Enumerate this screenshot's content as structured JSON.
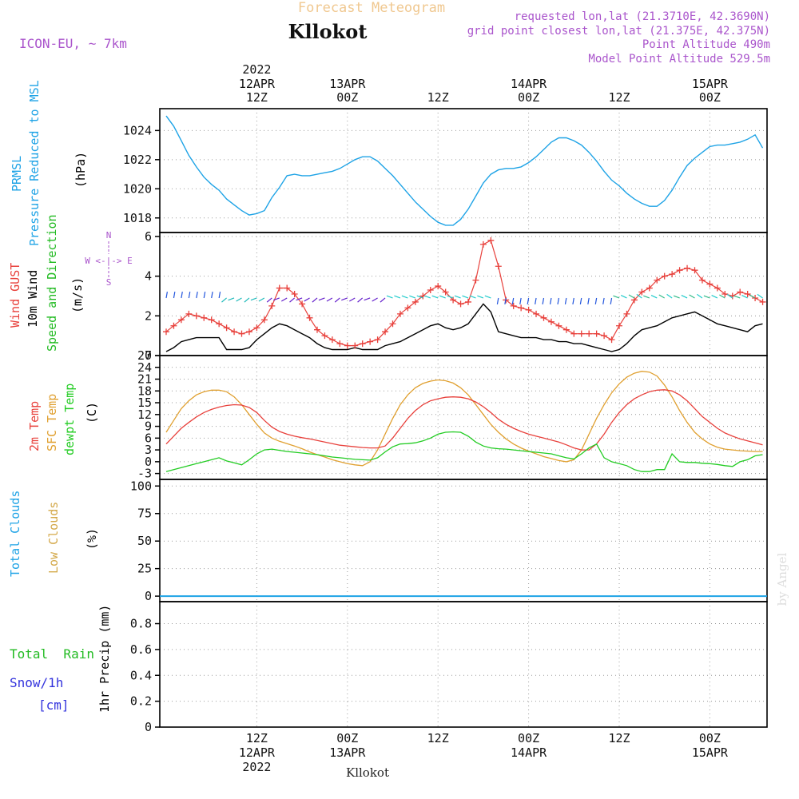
{
  "header": {
    "title": "Forecast Meteogram",
    "location": "Kllokot",
    "model": "ICON-EU, ~ 7km",
    "requested": "requested lon,lat (21.3710E, 42.3690N)",
    "grid_point": "grid point closest lon,lat (21.375E, 42.375N)",
    "point_altitude": "Point Altitude 490m",
    "model_altitude": "Model Point Altitude 529.5m"
  },
  "footer": {
    "location": "Kllokot",
    "credit": "by Angel"
  },
  "colors": {
    "pressure": "#1ea3e6",
    "gust": "#e8413c",
    "wind": "#000000",
    "wind_label_green": "#22bb22",
    "temp2m": "#e8413c",
    "sfc": "#e0a030",
    "dewpt": "#22cc22",
    "total_clouds": "#1ea3e6",
    "low_clouds": "#d4a94a",
    "rain": "#22bb22",
    "snow": "#3333dd",
    "purple": "#aa55cc",
    "title": "#f0c890"
  },
  "time_axis": {
    "top_labels": [
      {
        "t": 12,
        "line1": "2022",
        "line2": "12APR",
        "line3": "12Z"
      },
      {
        "t": 24,
        "line1": "",
        "line2": "13APR",
        "line3": "00Z"
      },
      {
        "t": 36,
        "line1": "",
        "line2": "",
        "line3": "12Z"
      },
      {
        "t": 48,
        "line1": "",
        "line2": "14APR",
        "line3": "00Z"
      },
      {
        "t": 60,
        "line1": "",
        "line2": "",
        "line3": "12Z"
      },
      {
        "t": 72,
        "line1": "",
        "line2": "15APR",
        "line3": "00Z"
      }
    ],
    "bottom_labels": [
      {
        "t": 12,
        "line1": "12Z",
        "line2": "12APR",
        "line3": "2022"
      },
      {
        "t": 24,
        "line1": "00Z",
        "line2": "13APR",
        "line3": ""
      },
      {
        "t": 36,
        "line1": "12Z",
        "line2": "",
        "line3": ""
      },
      {
        "t": 48,
        "line1": "00Z",
        "line2": "14APR",
        "line3": ""
      },
      {
        "t": 60,
        "line1": "12Z",
        "line2": "",
        "line3": ""
      },
      {
        "t": 72,
        "line1": "00Z",
        "line2": "15APR",
        "line3": ""
      }
    ]
  },
  "panels": {
    "pressure": {
      "label1": "PRMSL",
      "label2": "Pressure Reduced to MSL",
      "unit": "(hPa)"
    },
    "wind": {
      "gust": "Wind GUST",
      "wind10": "10m Wind",
      "speed_dir": "Speed and Direction",
      "unit": "(m/s)",
      "compass": "W <-|-> E",
      "compass_n": "N",
      "compass_s": "S"
    },
    "temp": {
      "t2m": "2m Temp",
      "sfc": "SFC Temp",
      "dew": "dewpt Temp",
      "unit": "(C)"
    },
    "clouds": {
      "total": "Total Clouds",
      "low": "Low Clouds",
      "unit": "(%)"
    },
    "precip": {
      "rain": "Total  Rain",
      "snow": "Snow/1h",
      "cm": "[cm]",
      "unit": "1hr Precip (mm)"
    }
  },
  "chart_data": [
    {
      "type": "line",
      "name": "pressure",
      "title": "PRMSL Pressure Reduced to MSL",
      "ylabel": "hPa",
      "t_start": 0,
      "t_step": 1,
      "xlim": [
        0,
        79
      ],
      "ylim": [
        1017,
        1025.5
      ],
      "yticks": [
        1018,
        1020,
        1022,
        1024
      ],
      "values": [
        1025.0,
        1024.3,
        1023.3,
        1022.3,
        1021.5,
        1020.8,
        1020.3,
        1019.9,
        1019.3,
        1018.9,
        1018.5,
        1018.2,
        1018.3,
        1018.5,
        1019.4,
        1020.1,
        1020.9,
        1021.0,
        1020.9,
        1020.9,
        1021.0,
        1021.1,
        1021.2,
        1021.4,
        1021.7,
        1022.0,
        1022.2,
        1022.2,
        1021.9,
        1021.4,
        1020.9,
        1020.3,
        1019.7,
        1019.1,
        1018.6,
        1018.1,
        1017.7,
        1017.5,
        1017.5,
        1017.9,
        1018.6,
        1019.5,
        1020.4,
        1021.0,
        1021.3,
        1021.4,
        1021.4,
        1021.5,
        1021.8,
        1022.2,
        1022.7,
        1023.2,
        1023.5,
        1023.5,
        1023.3,
        1023.0,
        1022.5,
        1021.9,
        1021.2,
        1020.6,
        1020.2,
        1019.7,
        1019.3,
        1019.0,
        1018.8,
        1018.8,
        1019.2,
        1019.9,
        1020.8,
        1021.6,
        1022.1,
        1022.5,
        1022.9,
        1023.0,
        1023.0,
        1023.1,
        1023.2,
        1023.4,
        1023.7,
        1022.8
      ]
    },
    {
      "type": "line",
      "name": "wind",
      "title": "Wind GUST / 10m Wind Speed and Direction",
      "ylabel": "m/s",
      "t_start": 0,
      "t_step": 1,
      "xlim": [
        0,
        79
      ],
      "ylim": [
        0,
        6.2
      ],
      "yticks": [
        0,
        2,
        4,
        6
      ],
      "series": [
        {
          "name": "Wind GUST",
          "values": [
            1.2,
            1.5,
            1.8,
            2.1,
            2.0,
            1.9,
            1.8,
            1.6,
            1.4,
            1.2,
            1.1,
            1.2,
            1.4,
            1.8,
            2.5,
            3.4,
            3.4,
            3.1,
            2.6,
            1.9,
            1.3,
            1.0,
            0.8,
            0.6,
            0.5,
            0.5,
            0.6,
            0.7,
            0.8,
            1.2,
            1.6,
            2.1,
            2.4,
            2.7,
            3.0,
            3.3,
            3.5,
            3.2,
            2.8,
            2.6,
            2.7,
            3.8,
            5.6,
            5.8,
            4.5,
            2.8,
            2.5,
            2.4,
            2.3,
            2.1,
            1.9,
            1.7,
            1.5,
            1.3,
            1.1,
            1.1,
            1.1,
            1.1,
            1.0,
            0.8,
            1.5,
            2.1,
            2.8,
            3.2,
            3.4,
            3.8,
            4.0,
            4.1,
            4.3,
            4.4,
            4.3,
            3.8,
            3.6,
            3.4,
            3.1,
            3.0,
            3.2,
            3.1,
            2.9,
            2.7
          ]
        },
        {
          "name": "10m Wind",
          "values": [
            0.2,
            0.4,
            0.7,
            0.8,
            0.9,
            0.9,
            0.9,
            0.9,
            0.3,
            0.3,
            0.3,
            0.4,
            0.8,
            1.1,
            1.4,
            1.6,
            1.5,
            1.3,
            1.1,
            0.9,
            0.6,
            0.4,
            0.3,
            0.3,
            0.3,
            0.4,
            0.3,
            0.3,
            0.3,
            0.5,
            0.6,
            0.7,
            0.9,
            1.1,
            1.3,
            1.5,
            1.6,
            1.4,
            1.3,
            1.4,
            1.6,
            2.1,
            2.6,
            2.2,
            1.2,
            1.1,
            1.0,
            0.9,
            0.9,
            0.9,
            0.8,
            0.8,
            0.7,
            0.7,
            0.6,
            0.6,
            0.5,
            0.4,
            0.3,
            0.2,
            0.3,
            0.6,
            1.0,
            1.3,
            1.4,
            1.5,
            1.7,
            1.9,
            2.0,
            2.1,
            2.2,
            2.0,
            1.8,
            1.6,
            1.5,
            1.4,
            1.3,
            1.2,
            1.5,
            1.6
          ]
        }
      ],
      "direction_colors": [
        "#2255dd",
        "#2255dd",
        "#6622cc",
        "#6622cc",
        "#6622cc",
        "#6622cc",
        "#00aaaa",
        "#33cccc",
        "#33bb88",
        "#22cccc"
      ]
    },
    {
      "type": "line",
      "name": "temperature",
      "title": "2m Temp / SFC Temp / dewpt Temp",
      "ylabel": "C",
      "t_start": 0,
      "t_step": 1,
      "xlim": [
        0,
        79
      ],
      "ylim": [
        -4.5,
        27
      ],
      "yticks": [
        -3,
        0,
        3,
        6,
        9,
        12,
        15,
        18,
        21,
        24,
        27
      ],
      "series": [
        {
          "name": "2m Temp",
          "values": [
            4.5,
            6.5,
            8.5,
            10.0,
            11.4,
            12.5,
            13.3,
            13.9,
            14.3,
            14.5,
            14.4,
            13.8,
            12.5,
            10.5,
            8.8,
            7.7,
            7.0,
            6.5,
            6.1,
            5.8,
            5.4,
            5.0,
            4.6,
            4.2,
            4.0,
            3.8,
            3.6,
            3.5,
            3.5,
            4.0,
            6.0,
            8.5,
            11.0,
            13.0,
            14.5,
            15.5,
            16.0,
            16.4,
            16.5,
            16.4,
            16.0,
            15.2,
            14.0,
            12.5,
            10.8,
            9.5,
            8.5,
            7.7,
            7.0,
            6.5,
            6.0,
            5.5,
            5.0,
            4.3,
            3.5,
            3.0,
            3.0,
            4.5,
            7.0,
            10.0,
            12.5,
            14.5,
            16.0,
            17.0,
            17.8,
            18.2,
            18.3,
            18.0,
            17.0,
            15.5,
            13.5,
            11.5,
            10.0,
            8.5,
            7.3,
            6.5,
            5.8,
            5.3,
            4.8,
            4.3
          ]
        },
        {
          "name": "SFC Temp",
          "values": [
            7.5,
            10.5,
            13.5,
            15.5,
            17.0,
            17.8,
            18.2,
            18.2,
            17.8,
            16.5,
            14.5,
            12.0,
            9.5,
            7.3,
            6.0,
            5.2,
            4.6,
            4.0,
            3.3,
            2.5,
            1.8,
            1.2,
            0.5,
            0.0,
            -0.5,
            -0.8,
            -1.0,
            0.0,
            3.0,
            7.0,
            11.0,
            14.5,
            17.0,
            18.8,
            19.9,
            20.5,
            20.8,
            20.6,
            20.0,
            18.8,
            17.0,
            14.5,
            12.0,
            9.5,
            7.5,
            5.8,
            4.5,
            3.5,
            2.7,
            2.0,
            1.3,
            0.8,
            0.3,
            0.0,
            0.5,
            3.0,
            7.0,
            11.0,
            14.5,
            17.5,
            19.8,
            21.5,
            22.5,
            23.0,
            22.8,
            21.8,
            19.5,
            16.5,
            13.0,
            10.0,
            7.5,
            5.8,
            4.5,
            3.7,
            3.2,
            3.0,
            2.8,
            2.7,
            2.6,
            2.6
          ]
        },
        {
          "name": "dewpt Temp",
          "values": [
            -2.5,
            -2.0,
            -1.5,
            -1.0,
            -0.5,
            0.0,
            0.5,
            1.0,
            0.2,
            -0.3,
            -0.8,
            0.5,
            2.0,
            3.0,
            3.2,
            2.9,
            2.6,
            2.4,
            2.2,
            2.0,
            1.8,
            1.5,
            1.2,
            1.0,
            0.8,
            0.6,
            0.5,
            0.4,
            1.0,
            2.5,
            3.8,
            4.5,
            4.6,
            4.8,
            5.3,
            6.0,
            7.0,
            7.5,
            7.6,
            7.5,
            6.5,
            5.0,
            4.0,
            3.5,
            3.3,
            3.2,
            3.0,
            2.8,
            2.6,
            2.4,
            2.2,
            2.0,
            1.5,
            1.0,
            0.7,
            2.0,
            3.5,
            4.5,
            1.0,
            0.0,
            -0.5,
            -1.0,
            -2.0,
            -2.5,
            -2.5,
            -2.0,
            -2.0,
            2.0,
            0.0,
            -0.2,
            -0.2,
            -0.4,
            -0.5,
            -0.7,
            -1.0,
            -1.2,
            0.0,
            0.5,
            1.5,
            1.8
          ]
        }
      ]
    },
    {
      "type": "bar",
      "name": "clouds",
      "title": "Total Clouds / Low Clouds",
      "ylabel": "%",
      "t_start": 0,
      "t_step": 1,
      "xlim": [
        0,
        79
      ],
      "ylim": [
        -5,
        106
      ],
      "yticks": [
        0,
        25,
        50,
        75,
        100
      ],
      "series": [
        {
          "name": "Total Clouds",
          "values": [
            0,
            0,
            0,
            0,
            0,
            0,
            0,
            0,
            0,
            0,
            0,
            0,
            0,
            0,
            0,
            0,
            0,
            0,
            0,
            0,
            0,
            0,
            0,
            0,
            0,
            0,
            0,
            0,
            0,
            0,
            0,
            0,
            0,
            0,
            0,
            0,
            0,
            0,
            0,
            0,
            0,
            0,
            0,
            0,
            0,
            0,
            0,
            0,
            0,
            0,
            0,
            0,
            0,
            0,
            0,
            0,
            0,
            0,
            0,
            0,
            0,
            0,
            0,
            0,
            0,
            0,
            0,
            0,
            0,
            0,
            0,
            0,
            0,
            0,
            0,
            0,
            0,
            0,
            0,
            0
          ]
        }
      ]
    },
    {
      "type": "bar",
      "name": "precip",
      "title": "1hr Precip",
      "ylabel": "mm",
      "t_start": 0,
      "t_step": 1,
      "xlim": [
        0,
        79
      ],
      "ylim": [
        0,
        0.97
      ],
      "yticks": [
        0,
        0.2,
        0.4,
        0.6,
        0.8
      ],
      "values": []
    }
  ]
}
